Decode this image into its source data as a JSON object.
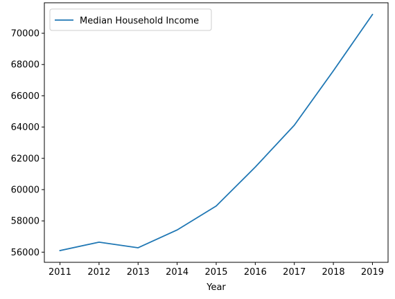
{
  "chart_data": {
    "type": "line",
    "title": "",
    "xlabel": "Year",
    "ylabel": "",
    "x": [
      2011,
      2012,
      2013,
      2014,
      2015,
      2016,
      2017,
      2018,
      2019
    ],
    "series": [
      {
        "name": "Median Household Income",
        "values": [
          56100,
          56640,
          56280,
          57420,
          58950,
          61440,
          64120,
          67600,
          71200
        ],
        "color": "#1f77b4"
      }
    ],
    "xlim": [
      2010.6,
      2019.4
    ],
    "ylim": [
      55350,
      71950
    ],
    "xticks": [
      2011,
      2012,
      2013,
      2014,
      2015,
      2016,
      2017,
      2018,
      2019
    ],
    "yticks": [
      56000,
      58000,
      60000,
      62000,
      64000,
      66000,
      68000,
      70000
    ],
    "legend_position": "top-left",
    "grid": false
  }
}
